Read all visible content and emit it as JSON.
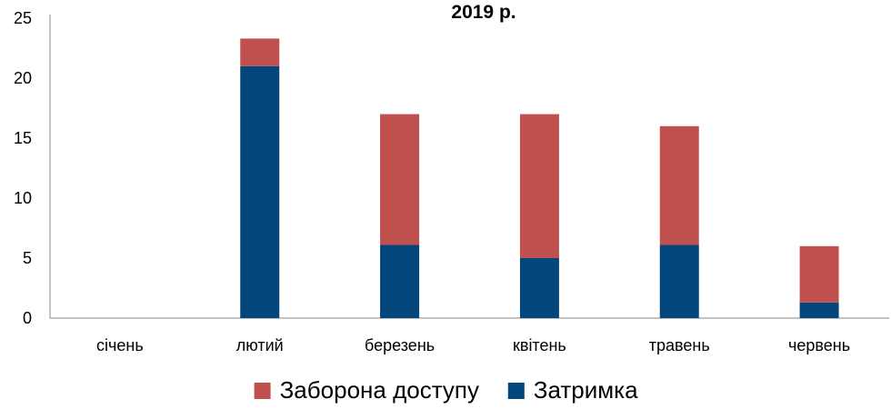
{
  "chart_data": {
    "type": "bar",
    "stacked": true,
    "title": "2019 р.",
    "categories": [
      "січень",
      "лютий",
      "березень",
      "квітень",
      "травень",
      "червень"
    ],
    "series": [
      {
        "name": "Затримка",
        "color": "#03467c",
        "values": [
          0,
          21,
          6.1,
          5,
          6.1,
          1.3
        ]
      },
      {
        "name": "Заборона доступу",
        "color": "#c0504d",
        "values": [
          0,
          2.3,
          10.9,
          12,
          9.9,
          4.7
        ]
      }
    ],
    "yticks": [
      0,
      5,
      10,
      15,
      20,
      25
    ],
    "ylim": [
      0,
      25
    ],
    "xlabel": "",
    "ylabel": "",
    "grid": false,
    "legend": {
      "position": "bottom",
      "order": [
        "Заборона доступу",
        "Затримка"
      ]
    }
  }
}
